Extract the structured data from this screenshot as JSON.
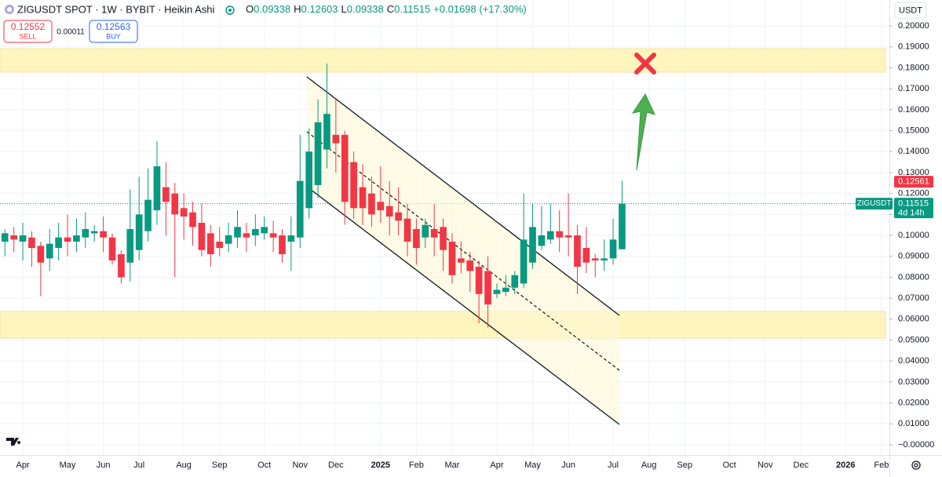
{
  "chart_data": {
    "type": "candlestick",
    "title": "ZIGUSDT SPOT · 1W · BYBIT · Heikin Ashi",
    "legend_ohlc": [
      {
        "key": "O",
        "value": "0.09338"
      },
      {
        "key": "H",
        "value": "0.12603"
      },
      {
        "key": "L",
        "value": "0.09338"
      },
      {
        "key": "C",
        "value": "0.11515"
      }
    ],
    "change": "+0.01698 (+17.30%)",
    "trade_panel": {
      "sell": {
        "price": "0.12552",
        "label": "SELL"
      },
      "spread": "0.00011",
      "buy": {
        "price": "0.12563",
        "label": "BUY"
      }
    },
    "currency": "USDT",
    "categories": [
      null,
      null,
      "Apr",
      null,
      null,
      null,
      null,
      "May",
      null,
      null,
      null,
      "Jun",
      null,
      null,
      null,
      "Jul",
      null,
      null,
      null,
      null,
      "Aug",
      null,
      null,
      null,
      "Sep",
      null,
      null,
      null,
      null,
      "Oct",
      null,
      null,
      null,
      "Nov",
      null,
      null,
      null,
      "Dec",
      null,
      null,
      null,
      null,
      "2025",
      null,
      null,
      null,
      "Feb",
      null,
      null,
      null,
      "Mar",
      null,
      null,
      null,
      null,
      "Apr",
      null,
      null,
      null,
      "May",
      null,
      null,
      null,
      "Jun",
      null,
      null,
      null,
      null,
      "Jul",
      null,
      null,
      null,
      "Aug",
      null,
      null,
      null,
      "Sep",
      null,
      null,
      null,
      null,
      "Oct",
      null,
      null,
      null,
      "Nov",
      null,
      null,
      null,
      "Dec",
      null,
      null,
      null,
      null,
      "2026",
      null,
      null,
      null,
      "Feb"
    ],
    "open": [
      0.097,
      0.1,
      0.097,
      0.099,
      0.095,
      0.089,
      0.094,
      0.099,
      0.097,
      0.099,
      0.101,
      0.102,
      0.099,
      0.091,
      0.087,
      0.093,
      0.102,
      0.112,
      0.123,
      0.12,
      0.113,
      0.111,
      0.106,
      0.101,
      0.097,
      0.096,
      0.099,
      0.101,
      0.1,
      0.101,
      0.101,
      0.1,
      0.097,
      0.099,
      0.113,
      0.124,
      0.141,
      0.148,
      0.148,
      0.135,
      0.123,
      0.12,
      0.116,
      0.114,
      0.111,
      0.108,
      0.103,
      0.099,
      0.103,
      0.104,
      0.097,
      0.089,
      0.088,
      0.085,
      0.083,
      0.072,
      0.073,
      0.075,
      0.077,
      0.087,
      0.095,
      0.098,
      0.102,
      0.1,
      0.1,
      0.094,
      0.089,
      0.088,
      0.089,
      0.09338,
      null,
      null,
      null,
      null,
      null,
      null,
      null,
      null,
      null,
      null,
      null,
      null,
      null,
      null,
      null,
      null,
      null,
      null,
      null,
      null,
      null,
      null,
      null,
      null,
      null,
      null,
      null,
      null,
      null
    ],
    "high": [
      0.103,
      0.104,
      0.106,
      0.102,
      0.097,
      0.103,
      0.106,
      0.11,
      0.108,
      0.111,
      0.105,
      0.109,
      0.101,
      0.093,
      0.122,
      0.128,
      0.132,
      0.145,
      0.135,
      0.125,
      0.12,
      0.116,
      0.115,
      0.105,
      0.104,
      0.106,
      0.112,
      0.106,
      0.11,
      0.109,
      0.107,
      0.103,
      0.109,
      0.148,
      0.151,
      0.165,
      0.182,
      0.165,
      0.15,
      0.14,
      0.134,
      0.128,
      0.133,
      0.126,
      0.123,
      0.115,
      0.108,
      0.108,
      0.115,
      0.108,
      0.101,
      0.097,
      0.092,
      0.088,
      0.09,
      0.077,
      0.081,
      0.083,
      0.12,
      0.115,
      0.114,
      0.115,
      0.112,
      0.12,
      0.105,
      0.104,
      0.091,
      0.098,
      0.108,
      0.12603,
      null,
      null,
      null,
      null,
      null,
      null,
      null,
      null,
      null,
      null,
      null,
      null,
      null,
      null,
      null,
      null,
      null,
      null,
      null,
      null,
      null,
      null,
      null,
      null,
      null,
      null,
      null,
      null,
      null
    ],
    "low": [
      0.09,
      0.092,
      0.088,
      0.085,
      0.071,
      0.083,
      0.088,
      0.09,
      0.092,
      0.094,
      0.097,
      0.092,
      0.086,
      0.077,
      0.078,
      0.088,
      0.097,
      0.105,
      0.1,
      0.08,
      0.098,
      0.095,
      0.09,
      0.085,
      0.09,
      0.092,
      0.094,
      0.092,
      0.095,
      0.098,
      0.092,
      0.087,
      0.083,
      0.094,
      0.108,
      0.118,
      0.132,
      0.13,
      0.105,
      0.108,
      0.105,
      0.104,
      0.106,
      0.1,
      0.1,
      0.09,
      0.086,
      0.094,
      0.09,
      0.083,
      0.077,
      0.082,
      0.073,
      0.058,
      0.056,
      0.07,
      0.071,
      0.072,
      0.075,
      0.084,
      0.093,
      0.096,
      0.092,
      0.09,
      0.072,
      0.082,
      0.08,
      0.083,
      0.086,
      0.09338,
      null,
      null,
      null,
      null,
      null,
      null,
      null,
      null,
      null,
      null,
      null,
      null,
      null,
      null,
      null,
      null,
      null,
      null,
      null,
      null,
      null,
      null,
      null,
      null,
      null,
      null,
      null,
      null,
      null
    ],
    "close": [
      0.101,
      0.098,
      0.1,
      0.094,
      0.087,
      0.096,
      0.099,
      0.097,
      0.1,
      0.103,
      0.102,
      0.099,
      0.088,
      0.08,
      0.103,
      0.11,
      0.117,
      0.133,
      0.116,
      0.11,
      0.109,
      0.104,
      0.093,
      0.091,
      0.094,
      0.1,
      0.104,
      0.099,
      0.103,
      0.104,
      0.099,
      0.091,
      0.1,
      0.126,
      0.14,
      0.154,
      0.158,
      0.144,
      0.116,
      0.113,
      0.113,
      0.11,
      0.112,
      0.109,
      0.107,
      0.097,
      0.094,
      0.105,
      0.099,
      0.093,
      0.081,
      0.087,
      0.083,
      0.072,
      0.067,
      0.074,
      0.075,
      0.081,
      0.098,
      0.104,
      0.1,
      0.102,
      0.099,
      0.099,
      0.085,
      0.087,
      0.088,
      0.089,
      0.098,
      0.11515,
      null,
      null,
      null,
      null,
      null,
      null,
      null,
      null,
      null,
      null,
      null,
      null,
      null,
      null,
      null,
      null,
      null,
      null,
      null,
      null,
      null,
      null,
      null,
      null,
      null,
      null,
      null,
      null,
      null
    ],
    "up_color": "#089981",
    "down_color": "#f23645",
    "ylim": [
      -0.0049,
      0.2124
    ],
    "yticks": [
      {
        "value": 0,
        "label": "−0.00000"
      },
      {
        "value": 0.01,
        "label": "0.01000"
      },
      {
        "value": 0.02,
        "label": "0.02000"
      },
      {
        "value": 0.03,
        "label": "0.03000"
      },
      {
        "value": 0.04,
        "label": "0.04000"
      },
      {
        "value": 0.05,
        "label": "0.05000"
      },
      {
        "value": 0.06,
        "label": "0.06000"
      },
      {
        "value": 0.07,
        "label": "0.07000"
      },
      {
        "value": 0.08,
        "label": "0.08000"
      },
      {
        "value": 0.09,
        "label": "0.09000"
      },
      {
        "value": 0.1,
        "label": "0.10000"
      },
      {
        "value": 0.11,
        "label": "0.11000"
      },
      {
        "value": 0.12,
        "label": "0.12000"
      },
      {
        "value": 0.13,
        "label": "0.13000"
      },
      {
        "value": 0.14,
        "label": "0.14000"
      },
      {
        "value": 0.15,
        "label": "0.15000"
      },
      {
        "value": 0.16,
        "label": "0.16000"
      },
      {
        "value": 0.17,
        "label": "0.17000"
      },
      {
        "value": 0.18,
        "label": "0.18000"
      },
      {
        "value": 0.19,
        "label": "0.19000"
      },
      {
        "value": 0.2,
        "label": "0.20000"
      }
    ],
    "grid": true,
    "ask_price": {
      "value": 0.12561,
      "label": "0.12561"
    },
    "last_price": {
      "symbol": "ZIGUSDT",
      "value": 0.11515,
      "label": "0.11515",
      "countdown": "4d 14h"
    }
  }
}
